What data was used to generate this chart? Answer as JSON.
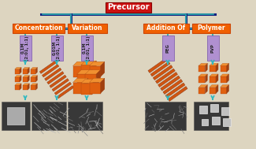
{
  "title": "Precursor",
  "title_bg": "#cc1111",
  "left_label1": "Concentration",
  "left_label2": "Variation",
  "right_label1": "Addition Of",
  "right_label2": "Polymer",
  "sub_labels": [
    "0.1M\n(2:01, 1:1)",
    "0.01M\n(2:01, 1:1)",
    "0.1M\n(2:01, 1:1)",
    "PEG",
    "PVP"
  ],
  "label_bg_orange": "#f06000",
  "label_bg_purple": "#b090d0",
  "connector_color": "#30b0b0",
  "line_color": "#102080",
  "bg_color": "#ddd5c0",
  "arrow_color": "#30b8c0",
  "cube_front": "#e06010",
  "cube_top": "#f09030",
  "cube_right": "#a04010",
  "rod_color": "#d05510",
  "rod_dark": "#803010"
}
